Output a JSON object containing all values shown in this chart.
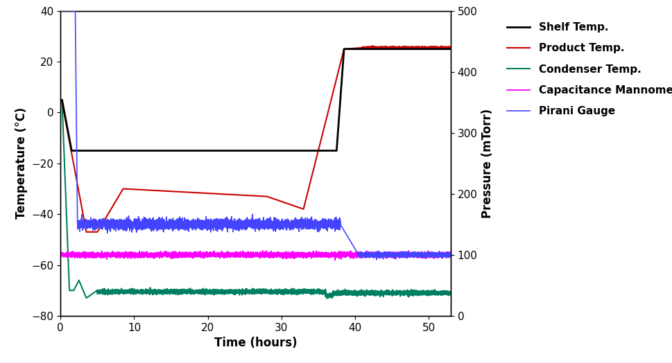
{
  "xlabel": "Time (hours)",
  "ylabel_left": "Temperature (°C)",
  "ylabel_right": "Pressure (mTorr)",
  "xlim": [
    0,
    53
  ],
  "ylim_left": [
    -80,
    40
  ],
  "ylim_right": [
    0,
    500
  ],
  "xticks": [
    0,
    10,
    20,
    30,
    40,
    50
  ],
  "yticks_left": [
    -80,
    -60,
    -40,
    -20,
    0,
    20,
    40
  ],
  "yticks_right": [
    0,
    100,
    200,
    300,
    400,
    500
  ],
  "colors": {
    "shelf": "#000000",
    "product": "#cc0000",
    "condenser": "#008060",
    "cap_man": "#ff00ff",
    "pirani": "#4444ff"
  },
  "legend": [
    {
      "label": "Shelf Temp.",
      "color": "#000000"
    },
    {
      "label": "Product Temp.",
      "color": "#cc0000"
    },
    {
      "label": "Condenser Temp.",
      "color": "#008060"
    },
    {
      "label": "Capacitance Mannometer",
      "color": "#ff00ff"
    },
    {
      "label": "Pirani Gauge",
      "color": "#4444ff"
    }
  ],
  "background_color": "#ffffff",
  "fontsize_labels": 12,
  "fontsize_ticks": 11,
  "fontsize_legend": 11
}
